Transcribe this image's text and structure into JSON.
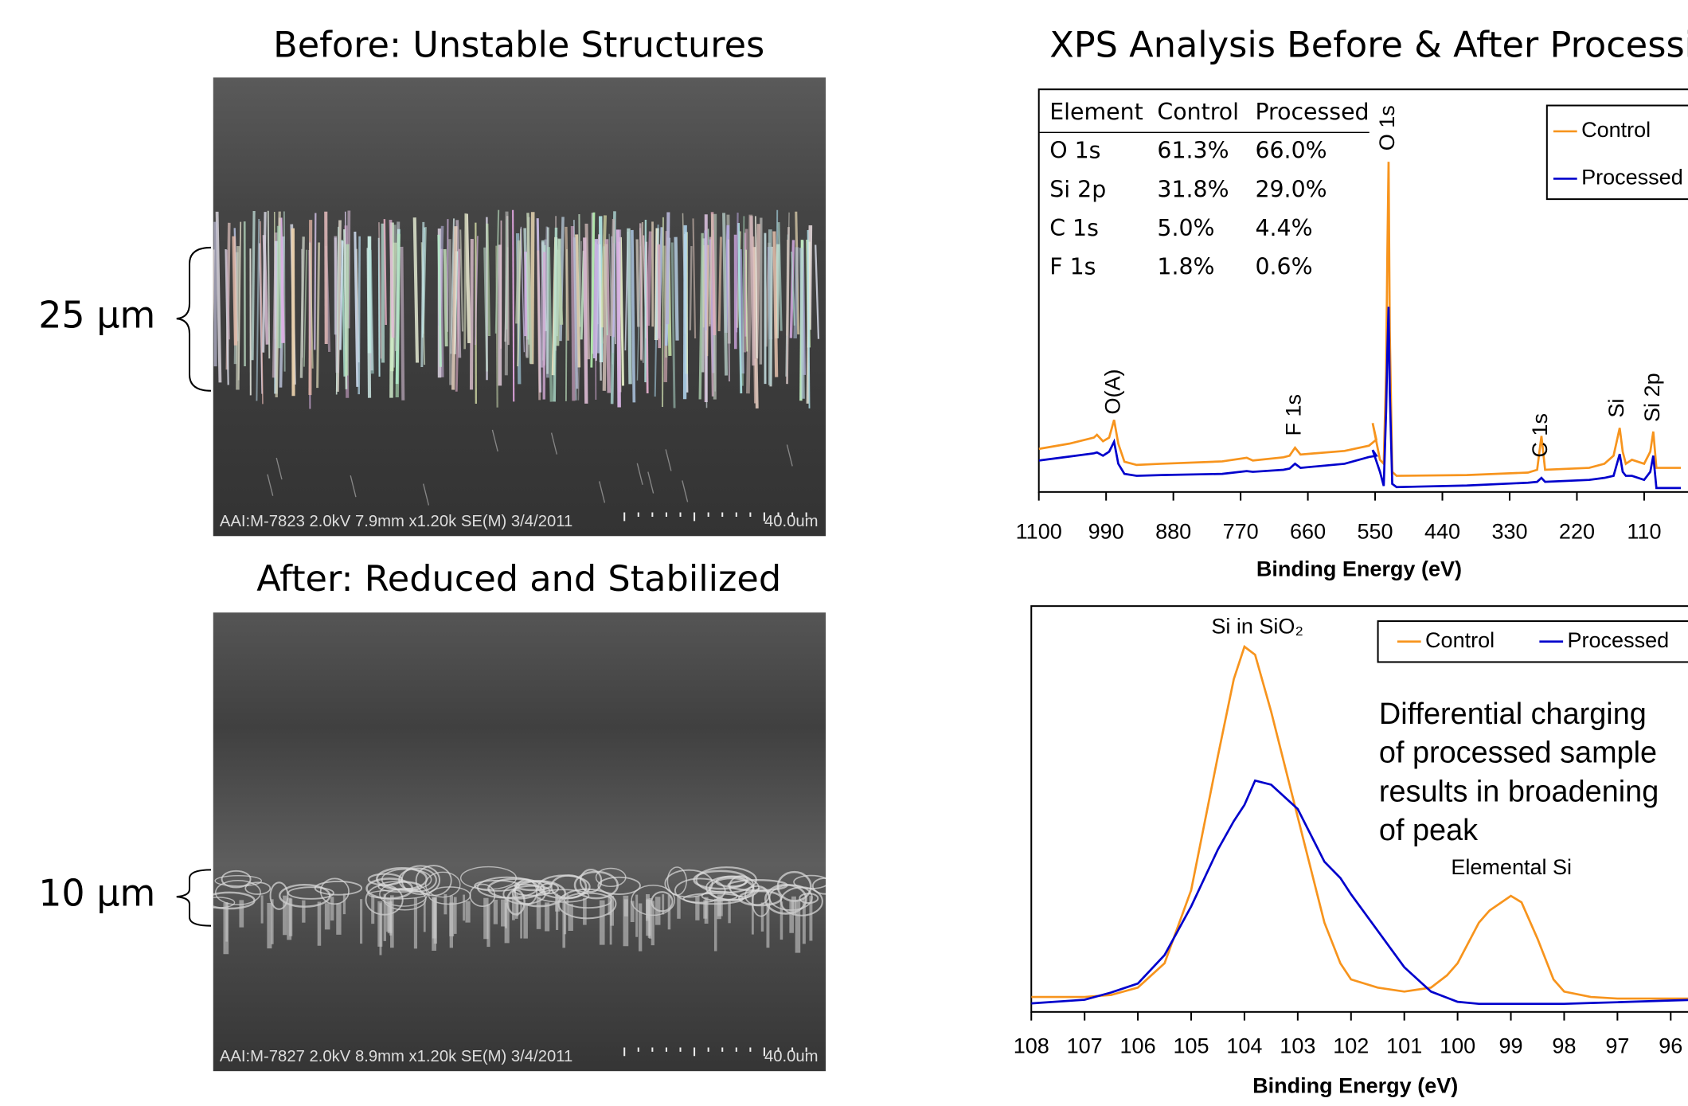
{
  "sem_images": [
    {
      "title": "Before: Unstable Structures",
      "scale_label": "25 µm",
      "caption": "AAI:M-7823 2.0kV 7.9mm x1.20k SE(M) 3/4/2011",
      "scale_bar": "40.0um"
    },
    {
      "title": "After: Reduced and Stabilized",
      "scale_label": "10 µm",
      "caption": "AAI:M-7827 2.0kV 8.9mm x1.20k SE(M) 3/4/2011",
      "scale_bar": "40.0um"
    }
  ],
  "chart_data": [
    {
      "type": "line",
      "title": "XPS Analysis Before & After Processing",
      "x_label": "Binding Energy (eV)",
      "x": [
        1100,
        1050,
        1010,
        1005,
        995,
        985,
        977,
        970,
        960,
        940,
        900,
        800,
        760,
        750,
        700,
        690,
        681,
        672,
        600,
        560,
        548,
        554,
        542,
        536,
        532,
        530,
        528,
        526,
        522,
        515,
        400,
        300,
        285,
        278,
        272,
        200,
        175,
        160,
        150,
        145,
        140,
        130,
        110,
        100,
        95,
        90,
        50
      ],
      "series": [
        {
          "name": "Control",
          "color": "#f7941d",
          "values": [
            10.7,
            12,
            13.5,
            14.2,
            12.6,
            13.5,
            17.9,
            12,
            7.5,
            6.7,
            7,
            7.6,
            8.5,
            7.8,
            8.6,
            9,
            11,
            9.3,
            10.2,
            11.5,
            13,
            17.1,
            8,
            7,
            30,
            60,
            82,
            40,
            5,
            4,
            4.2,
            4.8,
            5.5,
            13.9,
            5.5,
            6,
            7,
            9,
            15.9,
            10,
            7,
            8,
            7,
            10,
            15,
            6,
            6
          ]
        },
        {
          "name": "Processed",
          "color": "#0000cc",
          "values": [
            7.8,
            8.8,
            9.6,
            9.8,
            9,
            10,
            12.5,
            7,
            4.5,
            4,
            4.2,
            4.5,
            5.2,
            5,
            5.5,
            5.8,
            7,
            6,
            7,
            8.7,
            9,
            10.4,
            5,
            1.5,
            20,
            35,
            46,
            25,
            2,
            1.2,
            1.6,
            2.3,
            2.5,
            3.5,
            2.5,
            3,
            3.5,
            4,
            9.4,
            5,
            4,
            4,
            3,
            5,
            9,
            1,
            1
          ]
        }
      ],
      "xlim": [
        1100,
        0
      ],
      "xticks": [
        1100,
        990,
        880,
        770,
        660,
        550,
        440,
        330,
        220,
        110
      ],
      "ylim": [
        0,
        100
      ],
      "legend": "upper right",
      "annotations": [
        "O(A)",
        "F 1s",
        "O 1s",
        "C 1s",
        "Si",
        "Si 2p"
      ],
      "table": {
        "columns": [
          "Element",
          "Control",
          "Processed"
        ],
        "rows": [
          [
            "O 1s",
            "61.3%",
            "66.0%"
          ],
          [
            "Si 2p",
            "31.8%",
            "29.0%"
          ],
          [
            "C 1s",
            "5.0%",
            "4.4%"
          ],
          [
            "F 1s",
            "1.8%",
            "0.6%"
          ]
        ]
      }
    },
    {
      "type": "line",
      "x_label": "Binding Energy (eV)",
      "x": [
        108,
        107,
        106.5,
        106,
        105.5,
        105,
        104.5,
        104.2,
        104,
        103.8,
        103.5,
        103,
        102.5,
        102.2,
        102,
        101.5,
        101,
        100.5,
        100.2,
        100,
        99.6,
        99.4,
        99,
        98.8,
        98.5,
        98.2,
        98,
        97.5,
        97,
        96,
        95.5
      ],
      "series": [
        {
          "name": "Control",
          "color": "#f7941d",
          "values": [
            3.7,
            3.7,
            4.2,
            6,
            12,
            30,
            63,
            82,
            90,
            88,
            74,
            48,
            22,
            12,
            8,
            6,
            5,
            6,
            9,
            12,
            22,
            25,
            28.6,
            27,
            18,
            8,
            5,
            3.7,
            3.3,
            3.3,
            3.3
          ]
        },
        {
          "name": "Processed",
          "color": "#0000cc",
          "values": [
            2.1,
            3,
            4.8,
            7,
            14,
            26,
            40,
            47,
            51,
            57,
            56,
            50,
            37,
            33,
            29,
            20,
            11,
            5,
            3.5,
            2.5,
            2,
            2,
            2,
            2,
            2,
            2,
            2,
            2.2,
            2.4,
            2.8,
            3
          ]
        }
      ],
      "xlim": [
        108,
        95
      ],
      "xticks": [
        108,
        107,
        106,
        105,
        104,
        103,
        102,
        101,
        100,
        99,
        98,
        97,
        96
      ],
      "ylim": [
        0,
        100
      ],
      "legend": "upper right",
      "annotations": [
        "Si in SiO₂",
        "Elemental Si"
      ],
      "note_lines": [
        "Differential charging",
        "of processed sample",
        "results in broadening",
        "of peak"
      ]
    }
  ]
}
